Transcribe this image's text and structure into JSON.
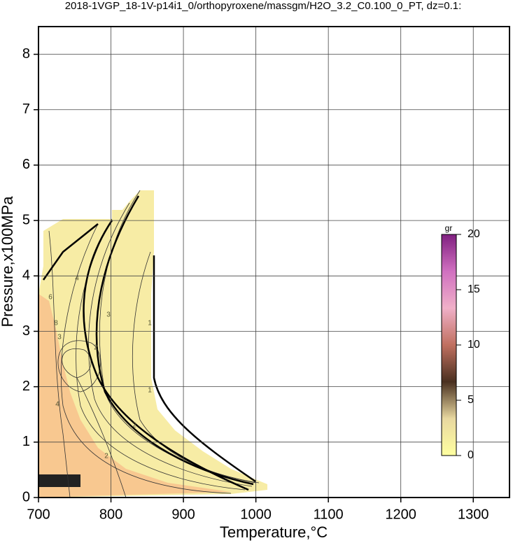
{
  "chart_data": {
    "type": "contour",
    "title": "2018-1VGP_18-1V-p14i1_0/orthopyroxene/massgm/H2O_3.2_C0.100_0_PT, dz=0.1:",
    "x_label": "Temperature,°C",
    "y_label": "Pressure,x100MPa",
    "xlim": [
      700,
      1350
    ],
    "xticks": [
      700,
      800,
      900,
      1000,
      1100,
      1200,
      1300
    ],
    "ylim": [
      0,
      8.5
    ],
    "yticks": [
      0,
      1,
      2,
      3,
      4,
      5,
      6,
      7,
      8
    ],
    "grid": true,
    "contour_labels": [
      "1",
      "1",
      "2",
      "2",
      "2",
      "3",
      "3",
      "4",
      "4",
      "6",
      "8"
    ],
    "colorbar": {
      "label": "gr",
      "lim": [
        0,
        20
      ],
      "ticks": [
        0,
        5,
        10,
        15,
        20
      ],
      "colors": [
        "#ffffa0",
        "#e8d8a0",
        "#4a3020",
        "#c07060",
        "#f0b0c8",
        "#d070c0",
        "#802080"
      ]
    }
  }
}
